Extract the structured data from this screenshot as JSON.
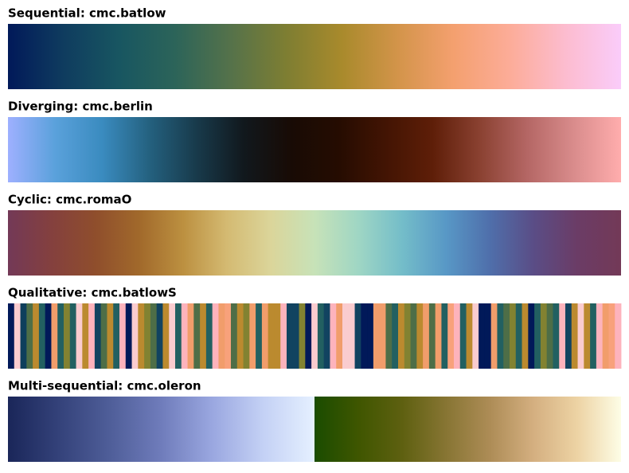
{
  "panels": [
    {
      "type": "gradient",
      "title": "Sequential: cmc.batlow",
      "colors": [
        "#011959",
        "#0f3c5f",
        "#185661",
        "#2c6459",
        "#55724a",
        "#7e7e32",
        "#a98a2c",
        "#d3944a",
        "#f4a06f",
        "#fcac98",
        "#fcbccf",
        "#faccfa"
      ]
    },
    {
      "type": "gradient",
      "title": "Diverging: cmc.berlin",
      "colors": [
        "#9eb0ff",
        "#5aa1db",
        "#3a8bbf",
        "#24617f",
        "#183a4b",
        "#11181d",
        "#180b05",
        "#250c01",
        "#421403",
        "#5e1e08",
        "#8a4131",
        "#b46664",
        "#d98c8c",
        "#ffadad"
      ]
    },
    {
      "type": "gradient",
      "title": "Cyclic: cmc.romaO",
      "colors": [
        "#733957",
        "#84403e",
        "#8f4e2c",
        "#a1692b",
        "#bc9040",
        "#d4ba72",
        "#dbd59a",
        "#c7e2b8",
        "#9fd6c4",
        "#74bdc9",
        "#5898c6",
        "#4f6fab",
        "#5a4d86",
        "#6b3c66",
        "#733957"
      ]
    },
    {
      "type": "stripes",
      "title": "Qualitative: cmc.batlowS",
      "colors": [
        "#011959",
        "#facccf",
        "#0e3f5c",
        "#4e6e47",
        "#bb8a2f",
        "#226061",
        "#011959",
        "#f19d6b",
        "#226061",
        "#828231",
        "#226061",
        "#facccf",
        "#bb8a2f",
        "#fdb3bc",
        "#114360",
        "#4e6e47",
        "#bb8a2f",
        "#226061",
        "#fdb3bc",
        "#011959",
        "#facccf",
        "#bb8a2f",
        "#828231",
        "#4e6e47",
        "#114360",
        "#bb8a2f",
        "#facccf",
        "#226061",
        "#fdb3bc",
        "#f19d6b",
        "#4e6e47",
        "#bb8a2f",
        "#226061",
        "#fdb3bc",
        "#f19d6b",
        "#f8a17b",
        "#4e6e47",
        "#bb8a2f",
        "#828231",
        "#f19d6b",
        "#226061",
        "#f19d6b",
        "#bb8a2f",
        "#bb8a2f",
        "#fdb3bc",
        "#114360",
        "#114360",
        "#828231",
        "#011959",
        "#facccf",
        "#226061",
        "#114360",
        "#fdb3bc",
        "#f19d6b",
        "#facccf",
        "#facccf",
        "#114360",
        "#011959",
        "#011959",
        "#f19d6b",
        "#f19d6b",
        "#4e6e47",
        "#226061",
        "#bb8a2f",
        "#828231",
        "#4e6e47",
        "#bb8a2f",
        "#f19d6b",
        "#4e6e47",
        "#f19d6b",
        "#226061",
        "#f8a17b",
        "#fdb3bc",
        "#226061",
        "#bb8a2f",
        "#facccf",
        "#011959",
        "#011959",
        "#f19d6b",
        "#226061",
        "#4e6e47",
        "#828231",
        "#226061",
        "#bb8a2f",
        "#011959",
        "#226061",
        "#828231",
        "#4e6e47",
        "#226061",
        "#fdb3bc",
        "#114360",
        "#bb8a2f",
        "#facccf",
        "#bb8a2f",
        "#226061",
        "#fdb3bc",
        "#f19d6b",
        "#f8a17b",
        "#fdb3bc"
      ]
    },
    {
      "type": "split",
      "title": "Multi-sequential: cmc.oleron",
      "segments": [
        [
          "#1a2659",
          "#34427a",
          "#4f5e99",
          "#6f7cbb",
          "#9aa7e0",
          "#c4d1f5",
          "#e5f0ff"
        ],
        [
          "#1a4c00",
          "#3f5600",
          "#5e6010",
          "#877533",
          "#ad8c56",
          "#d4af80",
          "#edd3a4",
          "#fdfde6"
        ]
      ]
    }
  ]
}
